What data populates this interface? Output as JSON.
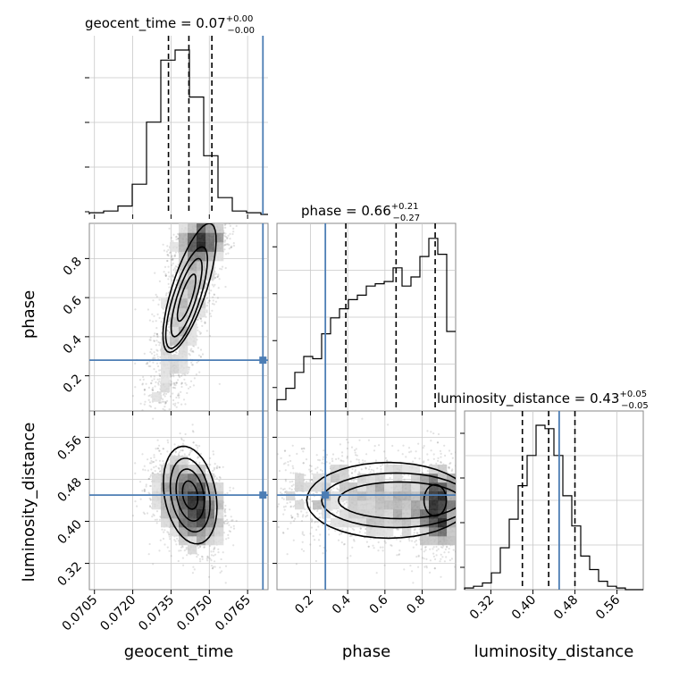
{
  "chart_data": {
    "type": "corner",
    "parameters": [
      "geocent_time",
      "phase",
      "luminosity_distance"
    ],
    "truth": {
      "geocent_time": 0.0771,
      "phase": 0.28,
      "luminosity_distance": 0.45
    },
    "colors": {
      "truth": "#4c7db4",
      "hist": "#000000",
      "grid": "#c8c8c8"
    },
    "grid": true,
    "titles": [
      {
        "param": "geocent_time",
        "label": "geocent_time",
        "median": "0.07",
        "plus": "+0.00",
        "minus": "−0.00"
      },
      {
        "param": "phase",
        "label": "phase",
        "median": "0.66",
        "plus": "+0.21",
        "minus": "−0.27"
      },
      {
        "param": "luminosity_distance",
        "label": "luminosity_distance",
        "median": "0.43",
        "plus": "+0.05",
        "minus": "−0.05"
      }
    ],
    "axis_labels": {
      "x": [
        "geocent_time",
        "phase",
        "luminosity_distance"
      ],
      "y": [
        "phase",
        "luminosity_distance"
      ]
    },
    "ticks": {
      "geocent_time": [
        "0.0705",
        "0.0720",
        "0.0735",
        "0.0750",
        "0.0765"
      ],
      "phase": [
        "0.2",
        "0.4",
        "0.6",
        "0.8"
      ],
      "luminosity_distance": [
        "0.32",
        "0.40",
        "0.48",
        "0.56"
      ]
    },
    "ranges": {
      "geocent_time": [
        0.0703,
        0.0773
      ],
      "phase": [
        0.02,
        0.98
      ],
      "luminosity_distance": [
        0.27,
        0.61
      ]
    },
    "quantiles": {
      "geocent_time": [
        0.0734,
        0.0742,
        0.0751
      ],
      "phase": [
        0.39,
        0.66,
        0.87
      ],
      "luminosity_distance": [
        0.38,
        0.43,
        0.48
      ]
    },
    "histograms": {
      "geocent_time": {
        "edges": [
          0.0703,
          0.07086,
          0.07142,
          0.07198,
          0.07254,
          0.0731,
          0.07366,
          0.07422,
          0.07478,
          0.07534,
          0.0759,
          0.07646,
          0.07702,
          0.0773
        ],
        "values": [
          1,
          2,
          5,
          18,
          55,
          92,
          98,
          70,
          35,
          10,
          2,
          1,
          0
        ]
      },
      "phase": {
        "edges": [
          0.02,
          0.068,
          0.116,
          0.164,
          0.212,
          0.26,
          0.308,
          0.356,
          0.404,
          0.452,
          0.5,
          0.548,
          0.596,
          0.644,
          0.692,
          0.74,
          0.788,
          0.836,
          0.884,
          0.932,
          0.98
        ],
        "values": [
          5,
          10,
          17,
          24,
          23,
          34,
          41,
          45,
          49,
          51,
          55,
          56,
          57,
          63,
          55,
          59,
          68,
          76,
          69,
          35
        ]
      },
      "luminosity_distance": {
        "edges": [
          0.27,
          0.287,
          0.304,
          0.321,
          0.338,
          0.355,
          0.372,
          0.389,
          0.406,
          0.423,
          0.44,
          0.457,
          0.474,
          0.491,
          0.508,
          0.525,
          0.542,
          0.559,
          0.576,
          0.593,
          0.61
        ],
        "values": [
          1,
          2,
          4,
          10,
          25,
          42,
          62,
          80,
          98,
          96,
          80,
          56,
          38,
          20,
          12,
          5,
          2,
          1,
          0,
          0
        ]
      }
    }
  }
}
